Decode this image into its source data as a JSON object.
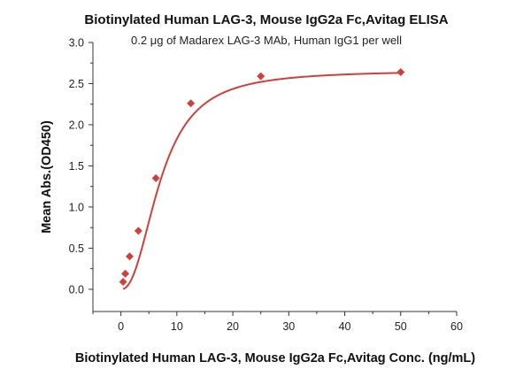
{
  "chart_data": {
    "type": "scatter",
    "title": "Biotinylated Human LAG-3, Mouse IgG2a Fc,Avitag ELISA",
    "subtitle": "0.2 μg of Madarex LAG-3 MAb, Human IgG1 per well",
    "xlabel": "Biotinylated Human LAG-3, Mouse IgG2a Fc,Avitag Conc. (ng/mL)",
    "ylabel": "Mean Abs.(OD450)",
    "xlim": [
      -5,
      60
    ],
    "ylim": [
      -0.27,
      3.0
    ],
    "xticks": [
      0,
      10,
      20,
      30,
      40,
      50,
      60
    ],
    "yticks": [
      0.0,
      0.5,
      1.0,
      1.5,
      2.0,
      2.5,
      3.0
    ],
    "xtick_labels": [
      "0",
      "10",
      "20",
      "30",
      "40",
      "50",
      "60"
    ],
    "ytick_labels": [
      "0.0",
      "0.5",
      "1.0",
      "1.5",
      "2.0",
      "2.5",
      "3.0"
    ],
    "grid": false,
    "color": "#d0403a",
    "series": [
      {
        "marker": "diamond",
        "fit": "sigmoidal",
        "x": [
          0.391,
          0.781,
          1.563,
          3.125,
          6.25,
          12.5,
          25,
          50
        ],
        "y": [
          0.09,
          0.19,
          0.4,
          0.71,
          1.35,
          2.26,
          2.59,
          2.64
        ]
      }
    ]
  }
}
